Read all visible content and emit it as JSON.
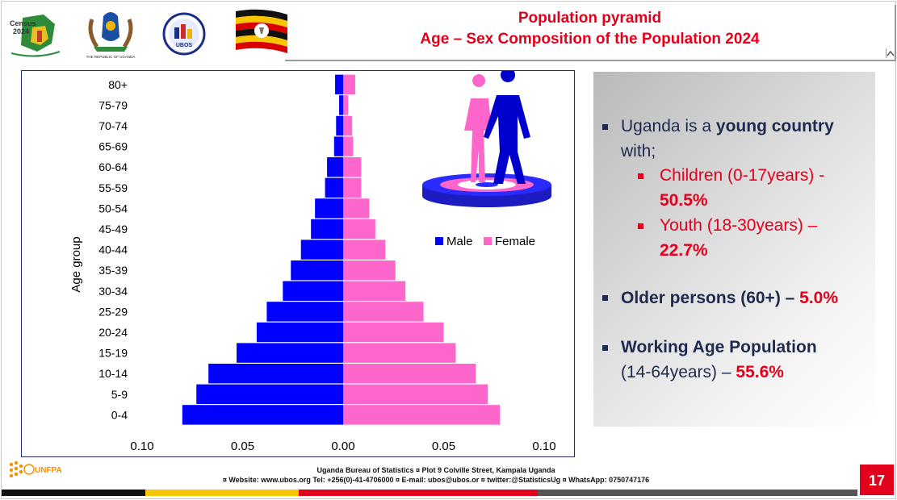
{
  "header": {
    "title_line1": "Population pyramid",
    "title_line2": "Age – Sex Composition of the Population 2024",
    "logos": [
      {
        "name": "census-2024-logo",
        "text": "Census 2024"
      },
      {
        "name": "uganda-coat-of-arms",
        "text": "THE REPUBLIC OF UGANDA"
      },
      {
        "name": "ubos-logo",
        "text": "UBOS"
      },
      {
        "name": "uganda-flag"
      }
    ]
  },
  "chart_data": {
    "type": "bar",
    "orientation": "horizontal-pyramid",
    "categories": [
      "0-4",
      "5-9",
      "10-14",
      "15-19",
      "20-24",
      "25-29",
      "30-34",
      "35-39",
      "40-44",
      "45-49",
      "50-54",
      "55-59",
      "60-64",
      "65-69",
      "70-74",
      "75-79",
      "80+"
    ],
    "series": [
      {
        "name": "Male",
        "color": "#0000ff",
        "values": [
          -0.08,
          -0.073,
          -0.067,
          -0.053,
          -0.043,
          -0.038,
          -0.03,
          -0.026,
          -0.021,
          -0.016,
          -0.014,
          -0.009,
          -0.008,
          -0.0045,
          -0.0035,
          -0.002,
          -0.004
        ]
      },
      {
        "name": "Female",
        "color": "#ff66cc",
        "values": [
          0.078,
          0.072,
          0.066,
          0.056,
          0.05,
          0.04,
          0.031,
          0.026,
          0.021,
          0.016,
          0.013,
          0.009,
          0.009,
          0.005,
          0.0045,
          0.0025,
          0.006
        ]
      }
    ],
    "xlim": [
      -0.1,
      0.1
    ],
    "xticks": [
      -0.1,
      -0.05,
      0.0,
      0.05,
      0.1
    ],
    "xtick_labels": [
      "0.10",
      "0.05",
      "0.00",
      "0.05",
      "0.10"
    ],
    "ylabel": "Age group",
    "legend_position": "right-middle"
  },
  "panel": {
    "b1_pre": "Uganda is a ",
    "b1_bold": "young country",
    "b1_post": "with;",
    "s1_text": "Children (0-17years) -",
    "s1_value": "50.5%",
    "s2_text": "Youth (18-30years) –",
    "s2_value": "22.7%",
    "b2_text": "Older persons (60+) – ",
    "b2_value": "5.0%",
    "b3_bold": "Working Age Population",
    "b3_text": "(14-64years) – ",
    "b3_value": "55.6%"
  },
  "footer": {
    "line1": "Uganda Bureau of Statistics ¤ Plot 9 Colville Street, Kampala Uganda",
    "line2": "¤ Website: www.ubos.org Tel: +256(0)-41-4706000 ¤ E-mail: ubos@ubos.or ¤ twitter:@StatisticsUg ¤ WhatsApp: 0750747176",
    "unfpa": "UNFPA",
    "page_number": "17"
  },
  "colors": {
    "accent_red": "#e3001b",
    "navy": "#1f2a4f",
    "male": "#0000ff",
    "female": "#ff66cc"
  }
}
